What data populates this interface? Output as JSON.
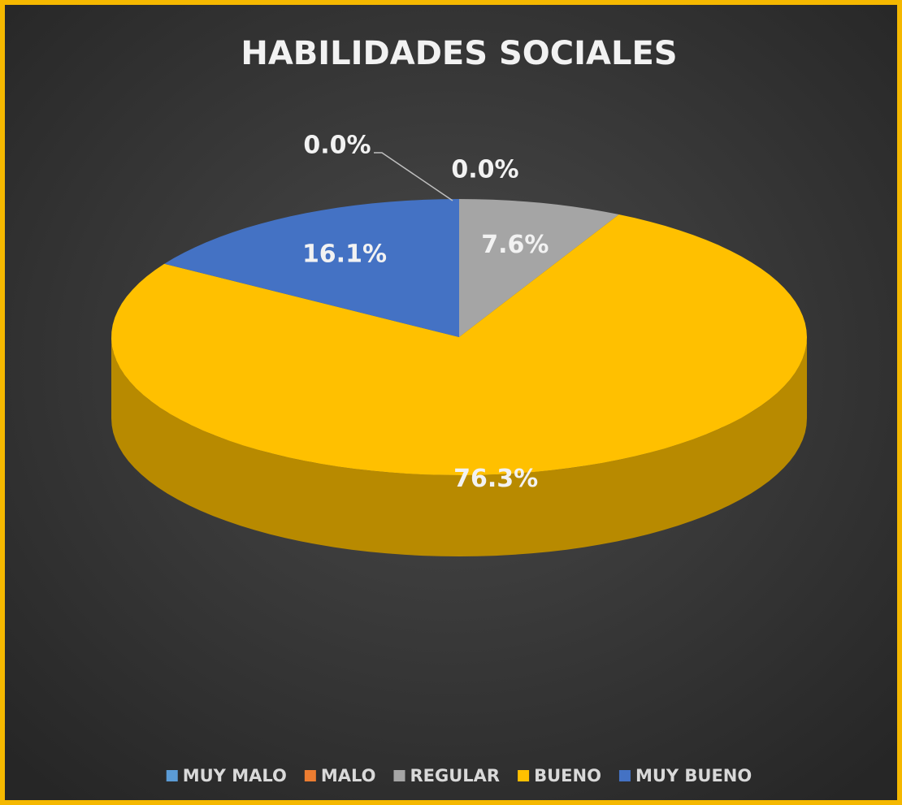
{
  "chart_data": {
    "type": "pie",
    "title": "HABILIDADES SOCIALES",
    "categories": [
      "MUY MALO",
      "MALO",
      "REGULAR",
      "BUENO",
      "MUY BUENO"
    ],
    "values": [
      0,
      0,
      7.6,
      76.3,
      16.1
    ],
    "value_labels": [
      "0.0%",
      "0.0%",
      "7.6%",
      "76.3%",
      "16.1%"
    ],
    "colors": [
      "#5b9bd5",
      "#ed7d31",
      "#a5a5a5",
      "#ffc000",
      "#4472c4"
    ],
    "legend": "bottom"
  }
}
